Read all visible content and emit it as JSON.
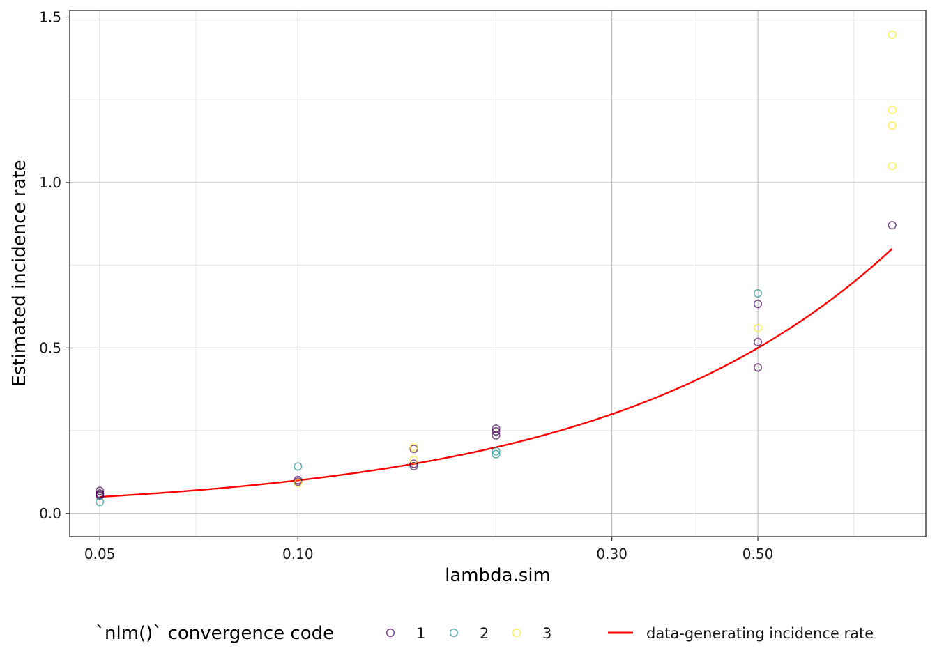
{
  "chart_data": {
    "type": "scatter",
    "xlabel": "lambda.sim",
    "ylabel": "Estimated incidence rate",
    "x_scale": "log10",
    "xlim": [
      0.045,
      0.9
    ],
    "ylim": [
      -0.07,
      1.52
    ],
    "x_ticks": [
      0.05,
      0.1,
      0.3,
      0.5
    ],
    "x_tick_labels": [
      "0.05",
      "0.10",
      "0.30",
      "0.50"
    ],
    "x_minor_ticks": [
      0.07,
      0.2,
      0.4,
      0.7
    ],
    "y_ticks": [
      0.0,
      0.5,
      1.0,
      1.5
    ],
    "y_tick_labels": [
      "0.0",
      "0.5",
      "1.0",
      "1.5"
    ],
    "y_minor_ticks": [
      0.25,
      0.75,
      1.25
    ],
    "grid": true,
    "legend_position": "bottom",
    "legend_title": "`nlm()` convergence code",
    "series": [
      {
        "name": "1",
        "color": "#440154",
        "points": [
          [
            0.05,
            0.068
          ],
          [
            0.05,
            0.06
          ],
          [
            0.05,
            0.057
          ],
          [
            0.05,
            0.054
          ],
          [
            0.1,
            0.101
          ],
          [
            0.1,
            0.096
          ],
          [
            0.15,
            0.195
          ],
          [
            0.15,
            0.15
          ],
          [
            0.15,
            0.143
          ],
          [
            0.2,
            0.256
          ],
          [
            0.2,
            0.248
          ],
          [
            0.2,
            0.236
          ],
          [
            0.5,
            0.633
          ],
          [
            0.5,
            0.518
          ],
          [
            0.5,
            0.441
          ],
          [
            0.8,
            0.871
          ]
        ]
      },
      {
        "name": "2",
        "color": "#21908C",
        "points": [
          [
            0.05,
            0.035
          ],
          [
            0.1,
            0.142
          ],
          [
            0.2,
            0.188
          ],
          [
            0.2,
            0.179
          ],
          [
            0.5,
            0.665
          ]
        ]
      },
      {
        "name": "3",
        "color": "#FDE725",
        "points": [
          [
            0.1,
            0.092
          ],
          [
            0.15,
            0.2
          ],
          [
            0.15,
            0.162
          ],
          [
            0.5,
            0.56
          ],
          [
            0.8,
            1.447
          ],
          [
            0.8,
            1.22
          ],
          [
            0.8,
            1.172
          ],
          [
            0.8,
            1.05
          ]
        ]
      }
    ],
    "line": {
      "name": "data-generating incidence rate",
      "color": "#FF0000",
      "x_from": 0.05,
      "x_to": 0.8
    }
  }
}
